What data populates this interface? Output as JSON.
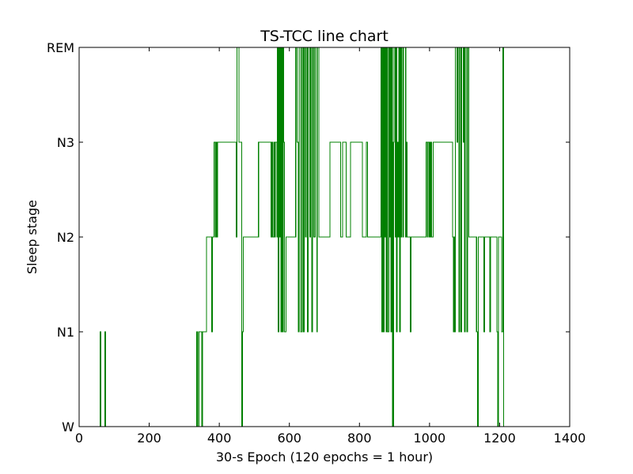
{
  "chart_data": {
    "type": "line",
    "title": "TS-TCC line chart",
    "xlabel": "30-s Epoch (120 epochs = 1 hour)",
    "ylabel": "Sleep stage",
    "xlim": [
      0,
      1400
    ],
    "x_ticks": [
      0,
      200,
      400,
      600,
      800,
      1000,
      1200,
      1400
    ],
    "y_categories": [
      "W",
      "N1",
      "N2",
      "N3",
      "REM"
    ],
    "grid": false,
    "legend": "none",
    "line_color": "#008000",
    "series": [
      {
        "drawstyle": "steps-post",
        "points": [
          [
            0,
            0
          ],
          [
            60,
            1
          ],
          [
            62,
            0
          ],
          [
            73,
            1
          ],
          [
            75,
            0
          ],
          [
            335,
            1
          ],
          [
            338,
            0
          ],
          [
            342,
            1
          ],
          [
            350,
            0
          ],
          [
            352,
            1
          ],
          [
            363,
            2
          ],
          [
            378,
            1
          ],
          [
            380,
            2
          ],
          [
            385,
            3
          ],
          [
            388,
            2
          ],
          [
            390,
            3
          ],
          [
            393,
            2
          ],
          [
            395,
            3
          ],
          [
            448,
            2
          ],
          [
            450,
            4
          ],
          [
            456,
            3
          ],
          [
            464,
            0
          ],
          [
            466,
            1
          ],
          [
            468,
            2
          ],
          [
            512,
            3
          ],
          [
            548,
            2
          ],
          [
            550,
            3
          ],
          [
            552,
            2
          ],
          [
            556,
            3
          ],
          [
            558,
            2
          ],
          [
            560,
            3
          ],
          [
            564,
            2
          ],
          [
            566,
            4
          ],
          [
            568,
            1
          ],
          [
            570,
            4
          ],
          [
            572,
            2
          ],
          [
            574,
            4
          ],
          [
            576,
            1
          ],
          [
            578,
            4
          ],
          [
            580,
            1
          ],
          [
            582,
            4
          ],
          [
            584,
            3
          ],
          [
            586,
            1
          ],
          [
            590,
            2
          ],
          [
            618,
            4
          ],
          [
            622,
            3
          ],
          [
            626,
            1
          ],
          [
            628,
            4
          ],
          [
            632,
            1
          ],
          [
            636,
            4
          ],
          [
            640,
            1
          ],
          [
            642,
            4
          ],
          [
            646,
            2
          ],
          [
            648,
            4
          ],
          [
            652,
            1
          ],
          [
            654,
            4
          ],
          [
            658,
            2
          ],
          [
            660,
            4
          ],
          [
            664,
            1
          ],
          [
            666,
            4
          ],
          [
            670,
            2
          ],
          [
            674,
            4
          ],
          [
            678,
            1
          ],
          [
            680,
            4
          ],
          [
            684,
            2
          ],
          [
            716,
            3
          ],
          [
            746,
            2
          ],
          [
            752,
            3
          ],
          [
            762,
            2
          ],
          [
            774,
            3
          ],
          [
            808,
            2
          ],
          [
            820,
            3
          ],
          [
            823,
            2
          ],
          [
            862,
            4
          ],
          [
            864,
            1
          ],
          [
            866,
            4
          ],
          [
            868,
            1
          ],
          [
            870,
            4
          ],
          [
            872,
            2
          ],
          [
            874,
            4
          ],
          [
            876,
            1
          ],
          [
            878,
            4
          ],
          [
            880,
            1
          ],
          [
            884,
            4
          ],
          [
            886,
            2
          ],
          [
            888,
            4
          ],
          [
            890,
            1
          ],
          [
            892,
            4
          ],
          [
            894,
            0
          ],
          [
            897,
            3
          ],
          [
            899,
            4
          ],
          [
            902,
            2
          ],
          [
            904,
            4
          ],
          [
            906,
            1
          ],
          [
            908,
            3
          ],
          [
            910,
            2
          ],
          [
            912,
            4
          ],
          [
            914,
            1
          ],
          [
            916,
            4
          ],
          [
            918,
            2
          ],
          [
            920,
            4
          ],
          [
            924,
            2
          ],
          [
            926,
            4
          ],
          [
            932,
            2
          ],
          [
            934,
            3
          ],
          [
            936,
            2
          ],
          [
            945,
            1
          ],
          [
            947,
            2
          ],
          [
            990,
            3
          ],
          [
            993,
            2
          ],
          [
            995,
            3
          ],
          [
            998,
            2
          ],
          [
            1000,
            3
          ],
          [
            1002,
            2
          ],
          [
            1004,
            3
          ],
          [
            1006,
            2
          ],
          [
            1010,
            3
          ],
          [
            1066,
            2
          ],
          [
            1068,
            1
          ],
          [
            1070,
            2
          ],
          [
            1072,
            1
          ],
          [
            1074,
            4
          ],
          [
            1078,
            3
          ],
          [
            1080,
            4
          ],
          [
            1084,
            1
          ],
          [
            1086,
            4
          ],
          [
            1090,
            1
          ],
          [
            1092,
            4
          ],
          [
            1096,
            3
          ],
          [
            1098,
            4
          ],
          [
            1100,
            1
          ],
          [
            1102,
            4
          ],
          [
            1106,
            1
          ],
          [
            1108,
            4
          ],
          [
            1112,
            2
          ],
          [
            1134,
            1
          ],
          [
            1137,
            0
          ],
          [
            1139,
            2
          ],
          [
            1155,
            1
          ],
          [
            1157,
            2
          ],
          [
            1172,
            1
          ],
          [
            1174,
            2
          ],
          [
            1192,
            1
          ],
          [
            1195,
            0
          ],
          [
            1197,
            2
          ],
          [
            1206,
            1
          ],
          [
            1209,
            4
          ],
          [
            1211,
            0
          ],
          [
            1272,
            0
          ]
        ]
      }
    ]
  }
}
